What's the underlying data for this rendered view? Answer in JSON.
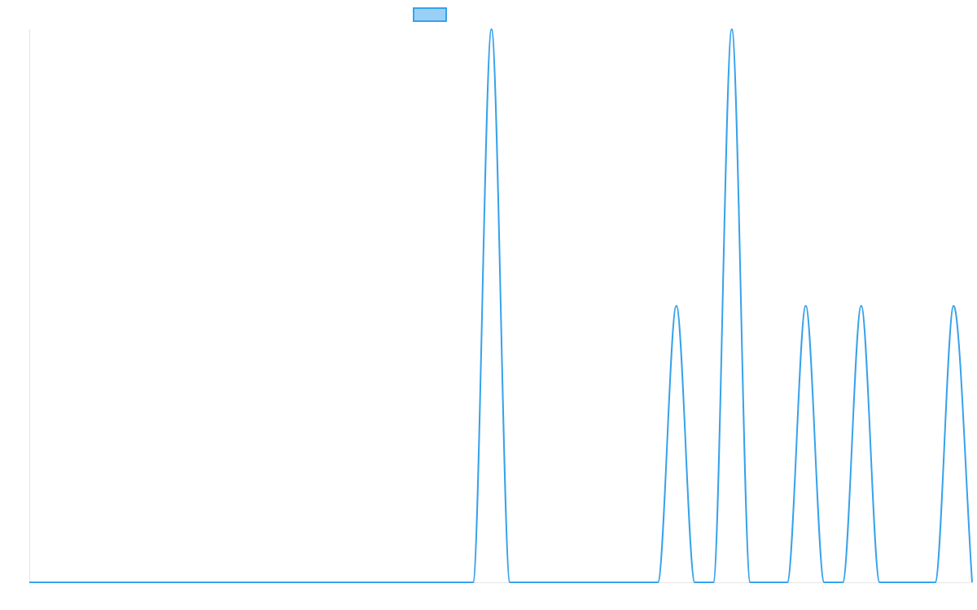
{
  "colors": {
    "line": "#36a2eb",
    "legend_fill": "#9ad0f5",
    "axis": "#e5e5e5"
  },
  "chart_data": {
    "type": "line",
    "title": "",
    "xlabel": "",
    "ylabel": "",
    "grid": false,
    "legend": {
      "placement": "top-center",
      "entries": [
        {
          "name": ""
        }
      ]
    },
    "x": [
      0,
      1,
      2,
      3,
      4,
      5,
      6,
      7,
      8,
      9,
      10,
      11,
      12,
      13,
      14,
      15,
      16,
      17,
      18,
      19,
      20,
      21,
      22,
      23,
      24,
      25,
      26,
      27,
      28,
      29,
      30,
      31,
      32,
      33,
      34,
      35,
      36,
      37,
      38,
      39,
      40,
      41,
      42,
      43,
      44,
      45,
      46,
      47,
      48,
      49,
      50,
      51
    ],
    "xlim": [
      0,
      51
    ],
    "ylim": [
      0,
      2
    ],
    "series": [
      {
        "name": "",
        "values": [
          0,
          0,
          0,
          0,
          0,
          0,
          0,
          0,
          0,
          0,
          0,
          0,
          0,
          0,
          0,
          0,
          0,
          0,
          0,
          0,
          0,
          0,
          0,
          0,
          0,
          2,
          0,
          0,
          0,
          0,
          0,
          0,
          0,
          0,
          0,
          1,
          0,
          0,
          2,
          0,
          0,
          0,
          1,
          0,
          0,
          1,
          0,
          0,
          0,
          0,
          1,
          0
        ]
      }
    ]
  }
}
